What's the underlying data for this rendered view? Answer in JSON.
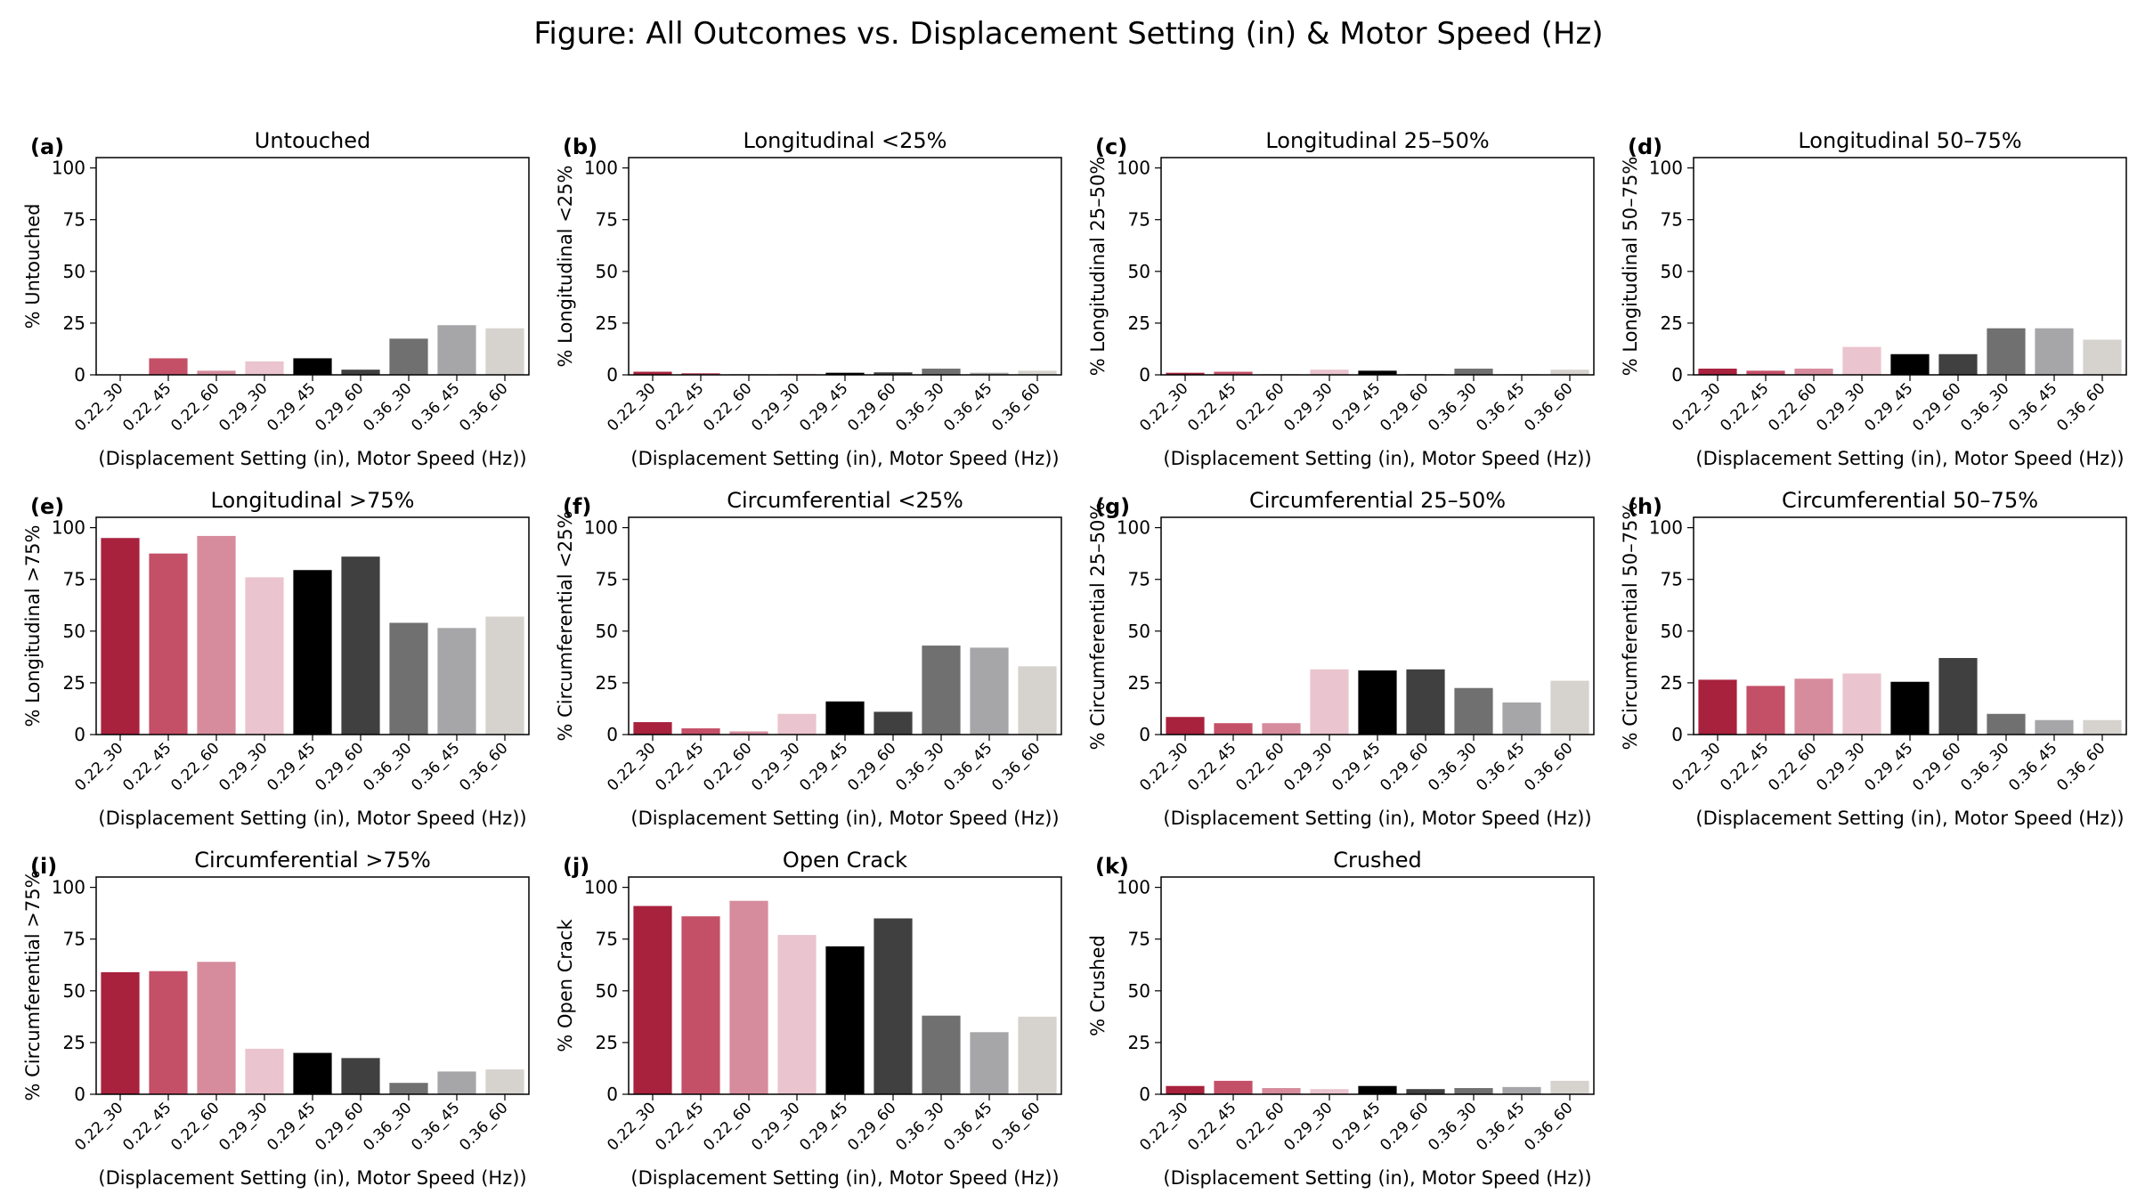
{
  "title": "Figure: All Outcomes vs. Displacement Setting (in) & Motor Speed (Hz)",
  "colors": [
    "#A8213D",
    "#C45068",
    "#D68C9D",
    "#EAC4CE",
    "#000000",
    "#404040",
    "#707070",
    "#A6A6A8",
    "#D6D3CE"
  ],
  "chart_data": [
    {
      "type": "bar",
      "letter": "(a)",
      "title": "Untouched",
      "ylabel": "% Untouched",
      "xlabel": "(Displacement Setting (in), Motor Speed (Hz))",
      "categories": [
        "0.22_30",
        "0.22_45",
        "0.22_60",
        "0.29_30",
        "0.29_45",
        "0.29_60",
        "0.36_30",
        "0.36_45",
        "0.36_60"
      ],
      "values": [
        0,
        8,
        2,
        6.5,
        8,
        2.5,
        17.5,
        24,
        22.5
      ],
      "ylim": [
        0,
        105
      ],
      "yticks": [
        0,
        25,
        50,
        75,
        100
      ]
    },
    {
      "type": "bar",
      "letter": "(b)",
      "title": "Longitudinal <25%",
      "ylabel": "% Longitudinal <25%",
      "xlabel": "(Displacement Setting (in), Motor Speed (Hz))",
      "categories": [
        "0.22_30",
        "0.22_45",
        "0.22_60",
        "0.29_30",
        "0.29_45",
        "0.29_60",
        "0.36_30",
        "0.36_45",
        "0.36_60"
      ],
      "values": [
        1.5,
        0.8,
        0.3,
        0.5,
        1,
        1.2,
        3,
        1,
        2
      ],
      "ylim": [
        0,
        105
      ],
      "yticks": [
        0,
        25,
        50,
        75,
        100
      ]
    },
    {
      "type": "bar",
      "letter": "(c)",
      "title": "Longitudinal 25–50%",
      "ylabel": "% Longitudinal 25–50%",
      "xlabel": "(Displacement Setting (in), Motor Speed (Hz))",
      "categories": [
        "0.22_30",
        "0.22_45",
        "0.22_60",
        "0.29_30",
        "0.29_45",
        "0.29_60",
        "0.36_30",
        "0.36_45",
        "0.36_60"
      ],
      "values": [
        1,
        1.5,
        0.3,
        2.5,
        2,
        0.3,
        3,
        0.3,
        2.5
      ],
      "ylim": [
        0,
        105
      ],
      "yticks": [
        0,
        25,
        50,
        75,
        100
      ]
    },
    {
      "type": "bar",
      "letter": "(d)",
      "title": "Longitudinal 50–75%",
      "ylabel": "% Longitudinal 50–75%",
      "xlabel": "(Displacement Setting (in), Motor Speed (Hz))",
      "categories": [
        "0.22_30",
        "0.22_45",
        "0.22_60",
        "0.29_30",
        "0.29_45",
        "0.29_60",
        "0.36_30",
        "0.36_45",
        "0.36_60"
      ],
      "values": [
        3,
        2,
        3,
        13.5,
        10,
        10,
        22.5,
        22.5,
        17
      ],
      "ylim": [
        0,
        105
      ],
      "yticks": [
        0,
        25,
        50,
        75,
        100
      ]
    },
    {
      "type": "bar",
      "letter": "(e)",
      "title": "Longitudinal >75%",
      "ylabel": "% Longitudinal >75%",
      "xlabel": "(Displacement Setting (in), Motor Speed (Hz))",
      "categories": [
        "0.22_30",
        "0.22_45",
        "0.22_60",
        "0.29_30",
        "0.29_45",
        "0.29_60",
        "0.36_30",
        "0.36_45",
        "0.36_60"
      ],
      "values": [
        95,
        87.5,
        96,
        76,
        79.5,
        86,
        54,
        51.5,
        57
      ],
      "ylim": [
        0,
        105
      ],
      "yticks": [
        0,
        25,
        50,
        75,
        100
      ]
    },
    {
      "type": "bar",
      "letter": "(f)",
      "title": "Circumferential <25%",
      "ylabel": "% Circumferential <25%",
      "xlabel": "(Displacement Setting (in), Motor Speed (Hz))",
      "categories": [
        "0.22_30",
        "0.22_45",
        "0.22_60",
        "0.29_30",
        "0.29_45",
        "0.29_60",
        "0.36_30",
        "0.36_45",
        "0.36_60"
      ],
      "values": [
        6,
        3,
        1.5,
        10,
        16,
        11,
        43,
        42,
        33
      ],
      "ylim": [
        0,
        105
      ],
      "yticks": [
        0,
        25,
        50,
        75,
        100
      ]
    },
    {
      "type": "bar",
      "letter": "(g)",
      "title": "Circumferential 25–50%",
      "ylabel": "% Circumferential 25–50%",
      "xlabel": "(Displacement Setting (in), Motor Speed (Hz))",
      "categories": [
        "0.22_30",
        "0.22_45",
        "0.22_60",
        "0.29_30",
        "0.29_45",
        "0.29_60",
        "0.36_30",
        "0.36_45",
        "0.36_60"
      ],
      "values": [
        8.5,
        5.5,
        5.5,
        31.5,
        31,
        31.5,
        22.5,
        15.5,
        26
      ],
      "ylim": [
        0,
        105
      ],
      "yticks": [
        0,
        25,
        50,
        75,
        100
      ]
    },
    {
      "type": "bar",
      "letter": "(h)",
      "title": "Circumferential 50–75%",
      "ylabel": "% Circumferential 50–75%",
      "xlabel": "(Displacement Setting (in), Motor Speed (Hz))",
      "categories": [
        "0.22_30",
        "0.22_45",
        "0.22_60",
        "0.29_30",
        "0.29_45",
        "0.29_60",
        "0.36_30",
        "0.36_45",
        "0.36_60"
      ],
      "values": [
        26.5,
        23.5,
        27,
        29.5,
        25.5,
        37,
        10,
        7,
        7
      ],
      "ylim": [
        0,
        105
      ],
      "yticks": [
        0,
        25,
        50,
        75,
        100
      ]
    },
    {
      "type": "bar",
      "letter": "(i)",
      "title": "Circumferential >75%",
      "ylabel": "% Circumferential >75%",
      "xlabel": "(Displacement Setting (in), Motor Speed (Hz))",
      "categories": [
        "0.22_30",
        "0.22_45",
        "0.22_60",
        "0.29_30",
        "0.29_45",
        "0.29_60",
        "0.36_30",
        "0.36_45",
        "0.36_60"
      ],
      "values": [
        59,
        59.5,
        64,
        22,
        20,
        17.5,
        5.5,
        11,
        12
      ],
      "ylim": [
        0,
        105
      ],
      "yticks": [
        0,
        25,
        50,
        75,
        100
      ]
    },
    {
      "type": "bar",
      "letter": "(j)",
      "title": "Open Crack",
      "ylabel": "% Open Crack",
      "xlabel": "(Displacement Setting (in), Motor Speed (Hz))",
      "categories": [
        "0.22_30",
        "0.22_45",
        "0.22_60",
        "0.29_30",
        "0.29_45",
        "0.29_60",
        "0.36_30",
        "0.36_45",
        "0.36_60"
      ],
      "values": [
        91,
        86,
        93.5,
        77,
        71.5,
        85,
        38,
        30,
        37.5
      ],
      "ylim": [
        0,
        105
      ],
      "yticks": [
        0,
        25,
        50,
        75,
        100
      ]
    },
    {
      "type": "bar",
      "letter": "(k)",
      "title": "Crushed",
      "ylabel": "% Crushed",
      "xlabel": "(Displacement Setting (in), Motor Speed (Hz))",
      "categories": [
        "0.22_30",
        "0.22_45",
        "0.22_60",
        "0.29_30",
        "0.29_45",
        "0.29_60",
        "0.36_30",
        "0.36_45",
        "0.36_60"
      ],
      "values": [
        4,
        6.5,
        3,
        2.5,
        4,
        2.5,
        3,
        3.5,
        6.5
      ],
      "ylim": [
        0,
        105
      ],
      "yticks": [
        0,
        25,
        50,
        75,
        100
      ]
    }
  ]
}
